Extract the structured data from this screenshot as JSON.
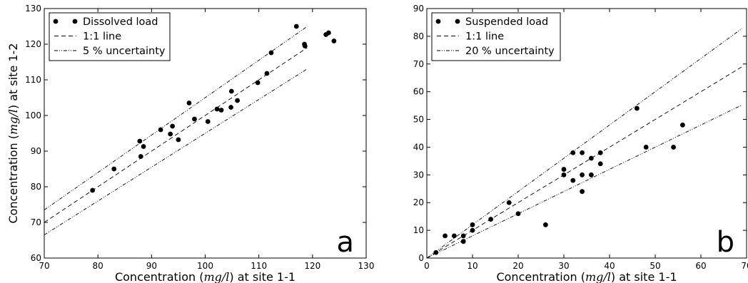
{
  "chart_data": [
    {
      "type": "scatter",
      "panel_letter": "a",
      "xlabel": "Concentration (mg/l) at site 1-1",
      "ylabel": "Concentration (mg/l) at site 1-2",
      "xlim": [
        70,
        130
      ],
      "ylim": [
        60,
        130
      ],
      "xticks": [
        "70",
        "80",
        "90",
        "100",
        "110",
        "120",
        "130"
      ],
      "yticks": [
        "60",
        "70",
        "80",
        "90",
        "100",
        "110",
        "120",
        "130"
      ],
      "grid": false,
      "legend_position": "top-left",
      "series": [
        {
          "name": "Dissolved load",
          "style": "points",
          "points": [
            [
              79,
              79
            ],
            [
              83,
              85
            ],
            [
              87.8,
              92.8
            ],
            [
              88,
              88.5
            ],
            [
              88.5,
              91.3
            ],
            [
              91.7,
              96
            ],
            [
              93.5,
              94.8
            ],
            [
              93.9,
              97
            ],
            [
              95,
              93.2
            ],
            [
              97,
              103.5
            ],
            [
              98,
              99
            ],
            [
              100.5,
              98.3
            ],
            [
              102.2,
              101.8
            ],
            [
              103,
              101.5
            ],
            [
              104.8,
              102.3
            ],
            [
              104.9,
              106.8
            ],
            [
              106,
              104.2
            ],
            [
              109.8,
              109.2
            ],
            [
              111.5,
              111.8
            ],
            [
              112.3,
              117.6
            ],
            [
              117,
              125
            ],
            [
              118.5,
              120
            ],
            [
              118.6,
              119.5
            ],
            [
              122.5,
              122.7
            ],
            [
              123,
              123.2
            ],
            [
              124,
              120.9
            ]
          ]
        },
        {
          "name": "1:1 line",
          "style": "dashed",
          "line": [
            [
              70,
              70
            ],
            [
              119,
              119
            ]
          ]
        },
        {
          "name": "5 % uncertainty",
          "style": "dashdot",
          "lines": [
            [
              [
                70,
                73.5
              ],
              [
                119,
                124.95
              ]
            ],
            [
              [
                70,
                66.5
              ],
              [
                119,
                113.05
              ]
            ]
          ]
        }
      ]
    },
    {
      "type": "scatter",
      "panel_letter": "b",
      "xlabel": "Concentration (mg/l) at site 1-1",
      "ylabel": "",
      "xlim": [
        0,
        70
      ],
      "ylim": [
        0,
        90
      ],
      "xticks": [
        "0",
        "10",
        "20",
        "30",
        "40",
        "50",
        "60",
        "70"
      ],
      "yticks": [
        "0",
        "10",
        "20",
        "30",
        "40",
        "50",
        "60",
        "70",
        "80",
        "90"
      ],
      "grid": false,
      "legend_position": "top-left",
      "series": [
        {
          "name": "Suspended load",
          "style": "points",
          "points": [
            [
              2,
              2
            ],
            [
              4,
              8
            ],
            [
              6,
              8
            ],
            [
              8,
              8
            ],
            [
              8,
              6
            ],
            [
              10,
              10
            ],
            [
              10,
              12
            ],
            [
              14,
              14
            ],
            [
              18,
              20
            ],
            [
              20,
              16
            ],
            [
              26,
              12
            ],
            [
              30,
              30
            ],
            [
              30,
              32
            ],
            [
              32,
              38
            ],
            [
              32,
              28
            ],
            [
              34,
              38
            ],
            [
              34,
              30
            ],
            [
              34,
              24
            ],
            [
              36,
              36
            ],
            [
              36,
              30
            ],
            [
              38,
              38
            ],
            [
              38,
              34
            ],
            [
              46,
              54
            ],
            [
              48,
              40
            ],
            [
              54,
              40
            ],
            [
              56,
              48
            ]
          ]
        },
        {
          "name": "1:1 line",
          "style": "dashed",
          "line": [
            [
              0,
              0
            ],
            [
              69,
              69
            ]
          ]
        },
        {
          "name": "20 % uncertainty",
          "style": "dashdot",
          "lines": [
            [
              [
                0,
                0
              ],
              [
                69,
                82.8
              ]
            ],
            [
              [
                0,
                0
              ],
              [
                69,
                55.2
              ]
            ]
          ]
        }
      ]
    }
  ]
}
